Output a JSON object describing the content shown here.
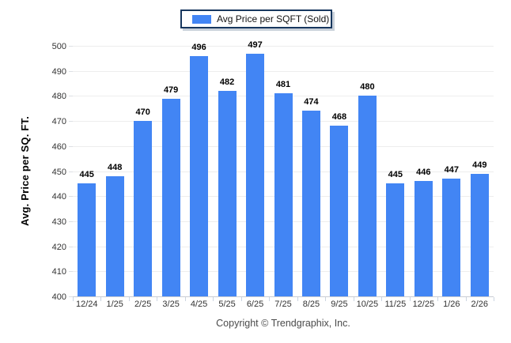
{
  "colors": {
    "bar": "#4285f4",
    "legend_border": "#17375e",
    "grid": "#ededed",
    "axis": "#c9ccd3",
    "tick_label": "#333333",
    "value_label": "#000000"
  },
  "footer": {
    "copyright": "Copyright © Trendgraphix, Inc."
  },
  "chart_data": {
    "type": "bar",
    "title": "",
    "legend": "Avg Price per SQFT (Sold)",
    "legend_position": "top-center",
    "xlabel": "",
    "ylabel": "Avg. Price per SQ. FT.",
    "categories": [
      "12/24",
      "1/25",
      "2/25",
      "3/25",
      "4/25",
      "5/25",
      "6/25",
      "7/25",
      "8/25",
      "9/25",
      "10/25",
      "11/25",
      "12/25",
      "1/26",
      "2/26"
    ],
    "values": [
      445,
      448,
      470,
      479,
      496,
      482,
      497,
      481,
      474,
      468,
      480,
      445,
      446,
      447,
      449
    ],
    "ylim": [
      400,
      500
    ],
    "ytick_step": 10,
    "grid": true,
    "value_labels": true
  }
}
